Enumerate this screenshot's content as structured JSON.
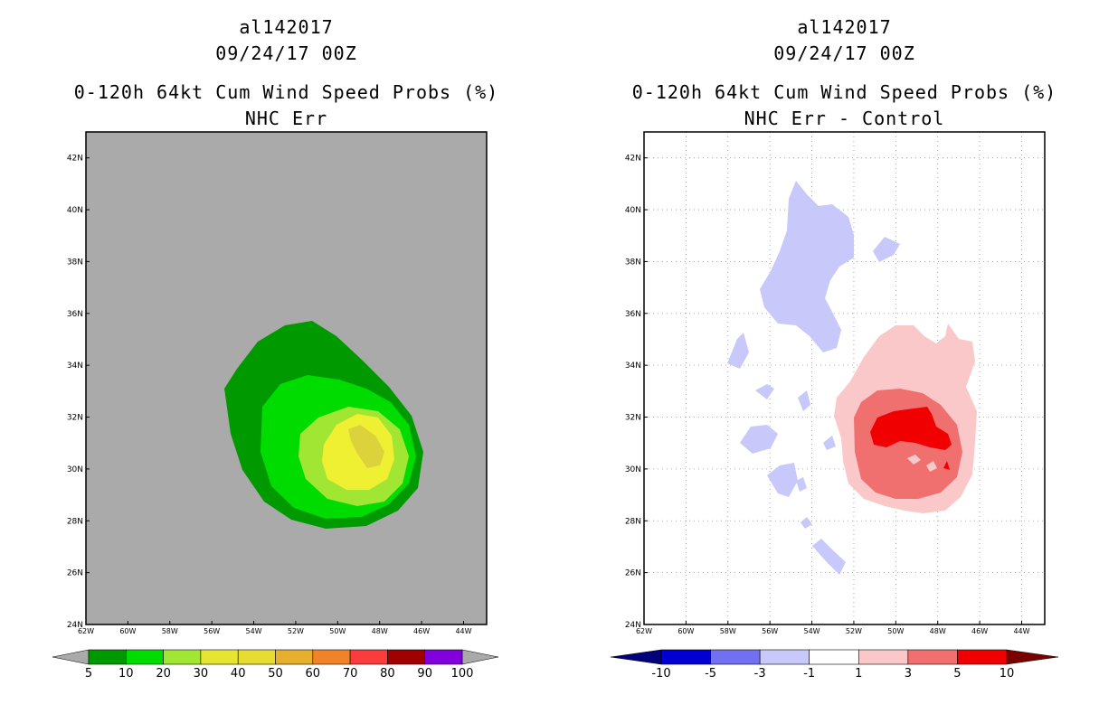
{
  "left_panel": {
    "storm_id": "al142017",
    "datetime": "09/24/17 00Z",
    "product": "0-120h 64kt Cum Wind Speed Probs (%)",
    "subtitle": "NHC Err",
    "lat_labels": [
      "42N",
      "40N",
      "38N",
      "36N",
      "34N",
      "32N",
      "30N",
      "28N",
      "26N",
      "24N"
    ],
    "lon_labels": [
      "62W",
      "60W",
      "58W",
      "56W",
      "54W",
      "52W",
      "50W",
      "48W",
      "46W",
      "44W"
    ],
    "colorbar": {
      "labels": [
        "5",
        "10",
        "20",
        "30",
        "40",
        "50",
        "60",
        "70",
        "80",
        "90",
        "100"
      ],
      "colors": [
        "#009a00",
        "#00dc00",
        "#a0e632",
        "#e6e632",
        "#e6dc32",
        "#e6af2d",
        "#f08228",
        "#fa3c3c",
        "#a00000",
        "#8200dc"
      ]
    }
  },
  "right_panel": {
    "storm_id": "al142017",
    "datetime": "09/24/17 00Z",
    "product": "0-120h 64kt Cum Wind Speed Probs (%)",
    "subtitle": "NHC Err - Control",
    "lat_labels": [
      "42N",
      "40N",
      "38N",
      "36N",
      "34N",
      "32N",
      "30N",
      "28N",
      "26N",
      "24N"
    ],
    "lon_labels": [
      "62W",
      "60W",
      "58W",
      "56W",
      "54W",
      "52W",
      "50W",
      "48W",
      "46W",
      "44W"
    ],
    "colorbar": {
      "labels": [
        "-10",
        "-5",
        "-3",
        "-1",
        "1",
        "3",
        "5",
        "10"
      ],
      "colors": [
        "#0000d2",
        "#7070f0",
        "#c8c8fa",
        "#ffffff",
        "#fac8c8",
        "#f07070",
        "#f00000"
      ]
    }
  }
}
